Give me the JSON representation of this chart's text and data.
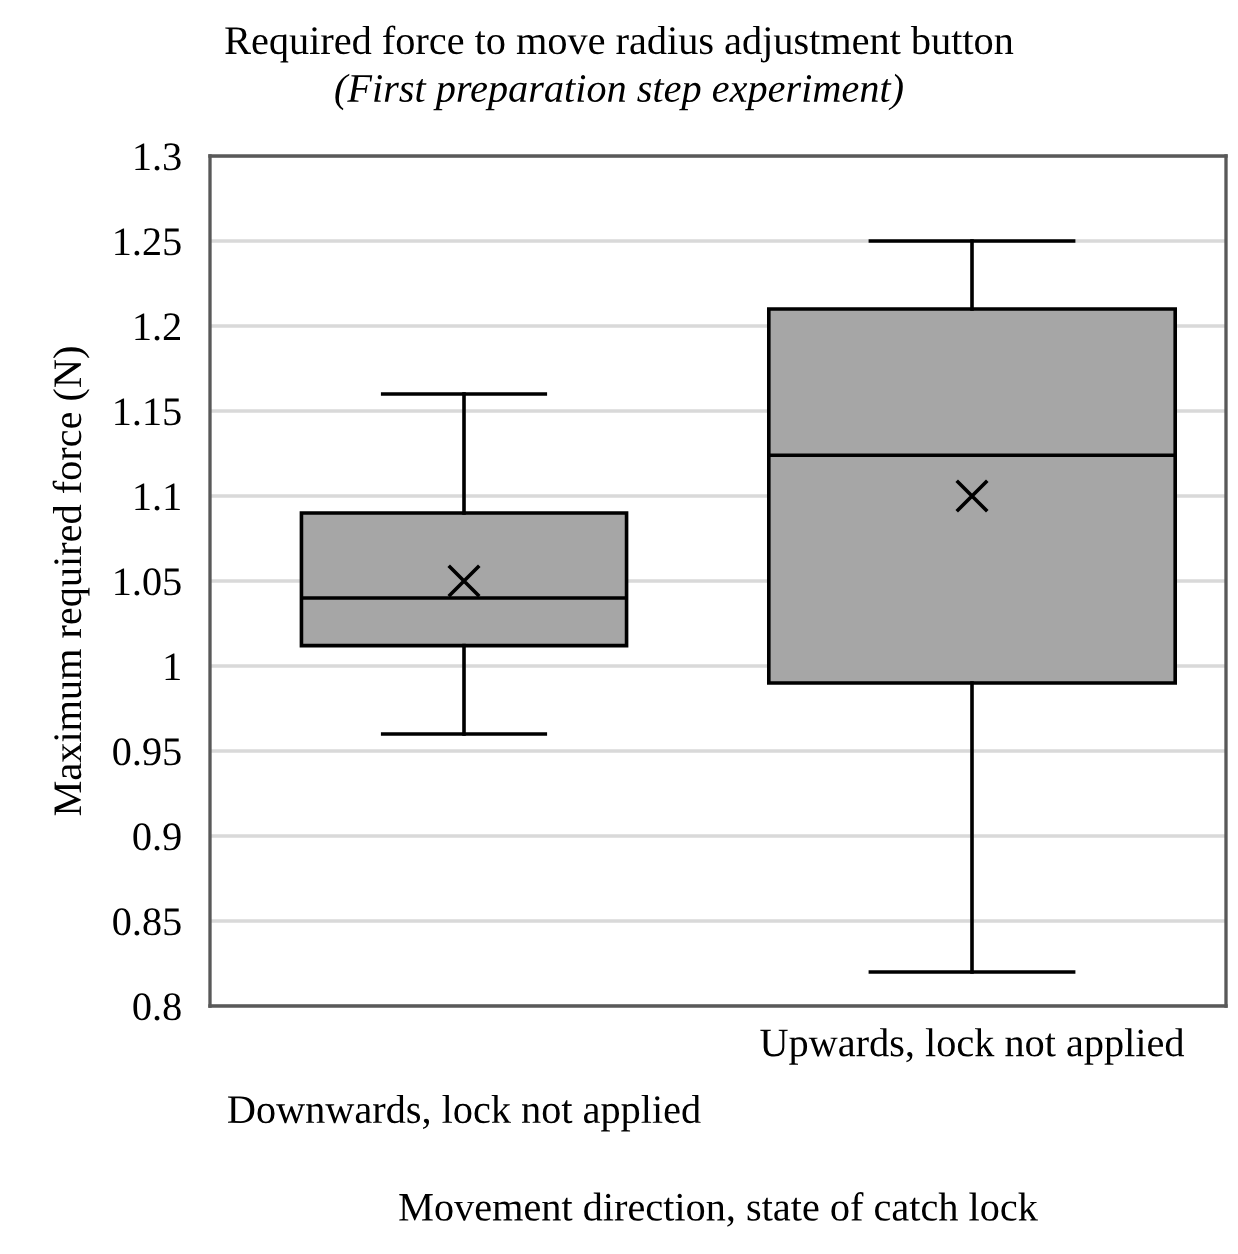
{
  "chart_data": {
    "type": "box",
    "title": "Required force to move radius adjustment button",
    "subtitle": "(First preparation step experiment)",
    "xlabel": "Movement direction, state of catch lock",
    "ylabel": "Maximum required force (N)",
    "categories": [
      "Downwards, lock not applied",
      "Upwards, lock not applied"
    ],
    "boxes": [
      {
        "low": 0.96,
        "q1": 1.012,
        "median": 1.04,
        "q3": 1.09,
        "high": 1.16,
        "mean": 1.05
      },
      {
        "low": 0.82,
        "q1": 0.99,
        "median": 1.124,
        "q3": 1.21,
        "high": 1.25,
        "mean": 1.1
      }
    ],
    "color": "#a6a6a6",
    "marker": "cross",
    "ylim": [
      0.8,
      1.3
    ],
    "yticks": [
      {
        "value": 0.8,
        "label": "0.8"
      },
      {
        "value": 0.85,
        "label": "0.85"
      },
      {
        "value": 0.9,
        "label": "0.9"
      },
      {
        "value": 0.95,
        "label": "0.95"
      },
      {
        "value": 1.0,
        "label": "1"
      },
      {
        "value": 1.05,
        "label": "1.05"
      },
      {
        "value": 1.1,
        "label": "1.1"
      },
      {
        "value": 1.15,
        "label": "1.15"
      },
      {
        "value": 1.2,
        "label": "1.2"
      },
      {
        "value": 1.25,
        "label": "1.25"
      },
      {
        "value": 1.3,
        "label": "1.3"
      }
    ],
    "grid": "y",
    "legend": false
  }
}
